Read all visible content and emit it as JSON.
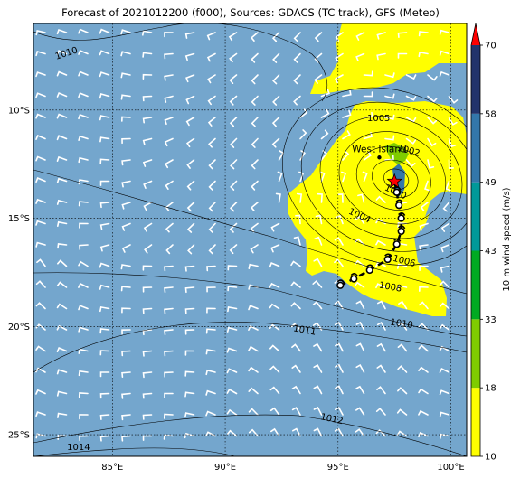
{
  "title": "Forecast of 2021012200 (f000), Sources: GDACS (TC track), GFS (Meteo)",
  "colors": {
    "ocean": "#74a6cd",
    "wind_10_18": "#ffff00",
    "wind_18_33": "#7fcc00",
    "wind_33_43": "#00aa22",
    "wind_43_49": "#009999",
    "wind_49_58": "#3377aa",
    "wind_58_70": "#22336b",
    "extend_arrow": "#ff0000",
    "barbs": "#ffffff",
    "contours": "#000000",
    "grid": "#000000"
  },
  "map": {
    "lon_range": [
      81.5,
      100.7
    ],
    "lat_range": [
      -26.0,
      -6.0
    ],
    "lon_ticks": [
      {
        "value": 85,
        "label": "85°E"
      },
      {
        "value": 90,
        "label": "90°E"
      },
      {
        "value": 95,
        "label": "95°E"
      },
      {
        "value": 100,
        "label": "100°E"
      }
    ],
    "lat_ticks": [
      {
        "value": -10,
        "label": "10°S"
      },
      {
        "value": -15,
        "label": "15°S"
      },
      {
        "value": -20,
        "label": "20°S"
      },
      {
        "value": -25,
        "label": "25°S"
      }
    ],
    "grid": "dotted"
  },
  "pressure_labels": [
    {
      "text": "1010",
      "lon": 83.0,
      "lat": -7.5,
      "angle": -18
    },
    {
      "text": "1005",
      "lon": 96.8,
      "lat": -10.5,
      "angle": 0
    },
    {
      "text": "1002",
      "lon": 98.1,
      "lat": -12.0,
      "angle": 15
    },
    {
      "text": "1000",
      "lon": 97.5,
      "lat": -13.9,
      "angle": 25
    },
    {
      "text": "1004",
      "lon": 95.9,
      "lat": -15.0,
      "angle": 25
    },
    {
      "text": "1006",
      "lon": 97.9,
      "lat": -17.1,
      "angle": 15
    },
    {
      "text": "1008",
      "lon": 97.3,
      "lat": -18.3,
      "angle": 10
    },
    {
      "text": "1010",
      "lon": 97.8,
      "lat": -20.0,
      "angle": 8
    },
    {
      "text": "1011",
      "lon": 93.5,
      "lat": -20.3,
      "angle": 10
    },
    {
      "text": "1012",
      "lon": 94.7,
      "lat": -24.4,
      "angle": 12
    },
    {
      "text": "1014",
      "lon": 83.5,
      "lat": -25.7,
      "angle": 0
    }
  ],
  "location": {
    "name": "West Island",
    "lon": 96.83,
    "lat": -12.19
  },
  "cyclone": {
    "current": {
      "lon": 97.5,
      "lat": -13.3
    },
    "track": [
      {
        "lon": 97.5,
        "lat": -13.3
      },
      {
        "lon": 97.6,
        "lat": -13.8
      },
      {
        "lon": 97.7,
        "lat": -14.4
      },
      {
        "lon": 97.8,
        "lat": -15.0
      },
      {
        "lon": 97.8,
        "lat": -15.6
      },
      {
        "lon": 97.6,
        "lat": -16.2
      },
      {
        "lon": 97.2,
        "lat": -16.9
      },
      {
        "lon": 96.4,
        "lat": -17.4
      },
      {
        "lon": 95.7,
        "lat": -17.8
      },
      {
        "lon": 95.1,
        "lat": -18.1
      }
    ]
  },
  "colorbar": {
    "label": "10 m wind speed (m/s)",
    "bounds": [
      10,
      18,
      33,
      43,
      49,
      58,
      70
    ],
    "tick_labels": [
      "10",
      "18",
      "33",
      "43",
      "49",
      "58",
      "70"
    ],
    "extend": "max"
  }
}
